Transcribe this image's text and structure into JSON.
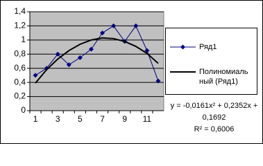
{
  "chart_data": {
    "type": "line",
    "categories": [
      1,
      null,
      3,
      null,
      5,
      null,
      7,
      null,
      9,
      null,
      11,
      null
    ],
    "series": [
      {
        "name": "Ряд1",
        "color": "#000080",
        "values": [
          0.5,
          0.6,
          0.8,
          0.65,
          0.75,
          0.87,
          1.1,
          1.2,
          0.98,
          1.2,
          0.85,
          0.42
        ]
      },
      {
        "name": "Полиномиальный (Ряд1)",
        "color": "#000000",
        "values": [
          0.39,
          0.58,
          0.73,
          0.85,
          0.94,
          1.0,
          1.03,
          1.02,
          0.98,
          0.91,
          0.81,
          0.67
        ]
      }
    ],
    "ylim": [
      0,
      1.4
    ],
    "yticks": [
      0,
      {
        "value": 0.2,
        "label": "0,2"
      },
      {
        "value": 0.4,
        "label": "0,4"
      },
      {
        "value": 0.6,
        "label": "0,6"
      },
      {
        "value": 0.8,
        "label": "0,8"
      },
      1,
      {
        "value": 1.2,
        "label": "1,2"
      },
      {
        "value": 1.4,
        "label": "1,4"
      }
    ],
    "grid": true,
    "legend": "right",
    "annotations": [
      "y = -0,0161x² + 0,2352x + 0,1692",
      "R² = 0,6006"
    ]
  }
}
